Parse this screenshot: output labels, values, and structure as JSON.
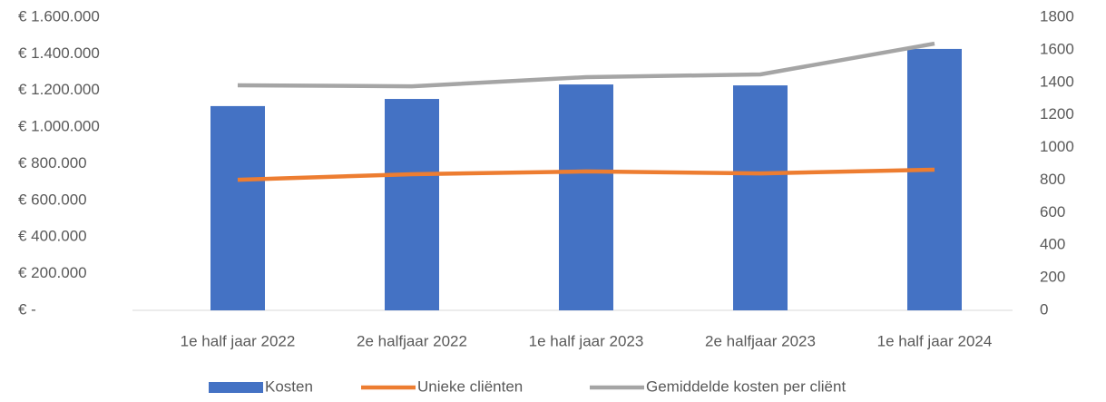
{
  "chart_data": {
    "type": "bar",
    "categories": [
      "1e half jaar 2022",
      "2e halfjaar 2022",
      "1e half jaar 2023",
      "2e halfjaar 2023",
      "1e half jaar 2024"
    ],
    "series": [
      {
        "name": "Kosten",
        "type": "bar",
        "color": "#4472c4",
        "values": [
          1115000,
          1154000,
          1233000,
          1228000,
          1427000
        ]
      },
      {
        "name": "Unieke cliënten",
        "type": "line",
        "axis": "y2",
        "color": "#ed7d31",
        "values": [
          802,
          836,
          853,
          841,
          864
        ]
      },
      {
        "name": "Gemiddelde kosten per cliënt",
        "type": "line",
        "axis": "y2",
        "color": "#a5a5a5",
        "values": [
          1382,
          1376,
          1432,
          1449,
          1638
        ]
      }
    ],
    "ylim": [
      0,
      1600000
    ],
    "yticks": [
      {
        "value": 0,
        "label": "€ -"
      },
      {
        "value": 200000,
        "label": "€ 200.000"
      },
      {
        "value": 400000,
        "label": "€ 400.000"
      },
      {
        "value": 600000,
        "label": "€ 600.000"
      },
      {
        "value": 800000,
        "label": "€ 800.000"
      },
      {
        "value": 1000000,
        "label": "€ 1.000.000"
      },
      {
        "value": 1200000,
        "label": "€ 1.200.000"
      },
      {
        "value": 1400000,
        "label": "€ 1.400.000"
      },
      {
        "value": 1600000,
        "label": "€ 1.600.000"
      }
    ],
    "y2lim": [
      0,
      1800
    ],
    "y2ticks": [
      0,
      200,
      400,
      600,
      800,
      1000,
      1200,
      1400,
      1600,
      1800
    ],
    "legend": "bottom"
  }
}
